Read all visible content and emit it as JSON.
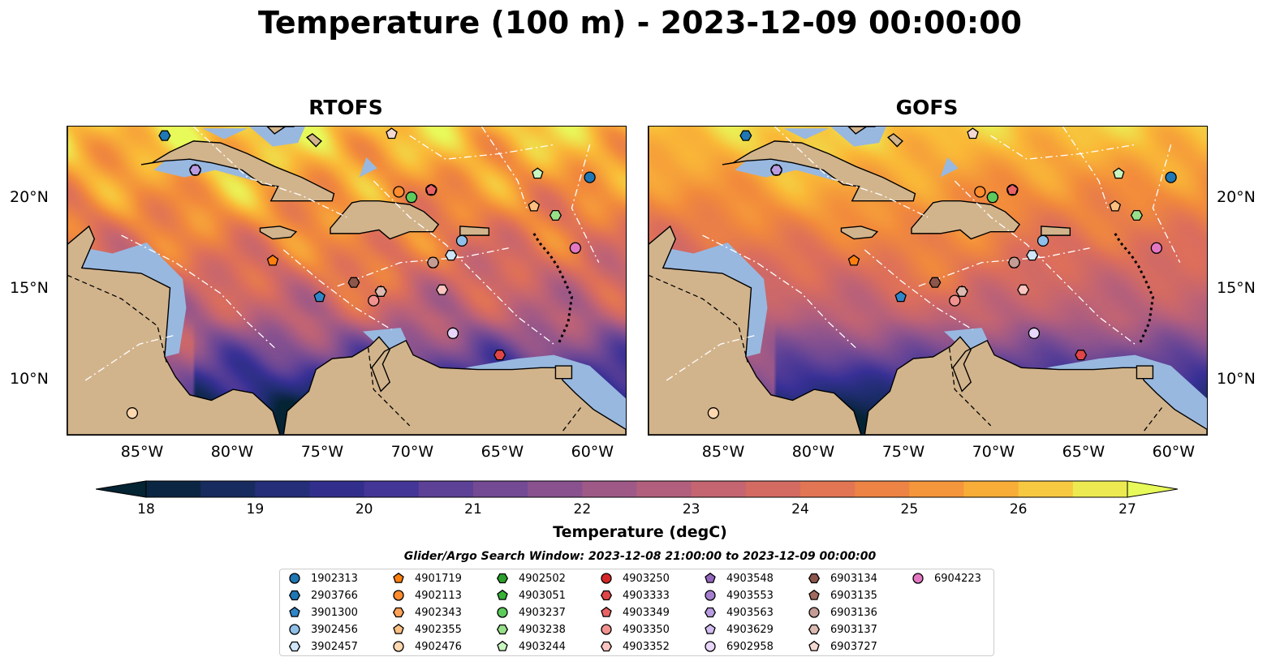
{
  "title": "Temperature (100 m) - 2023-12-09 00:00:00",
  "panels": [
    {
      "title": "RTOFS"
    },
    {
      "title": "GOFS"
    }
  ],
  "axes": {
    "lon_ticks": [
      "85°W",
      "80°W",
      "75°W",
      "70°W",
      "65°W",
      "60°W"
    ],
    "lat_ticks": [
      "20°N",
      "15°N",
      "10°N"
    ]
  },
  "colorbar": {
    "label": "Temperature (degC)",
    "ticks": [
      "18",
      "19",
      "20",
      "21",
      "22",
      "23",
      "24",
      "25",
      "26",
      "27"
    ],
    "min": 18,
    "max": 27,
    "step": 0.5,
    "extend": "both",
    "colormap": "thermal"
  },
  "search_window": "Glider/Argo Search Window: 2023-12-08 21:00:00 to 2023-12-09 00:00:00",
  "legend": [
    {
      "id": "1902313",
      "marker": "circle",
      "color": "#1f77b4"
    },
    {
      "id": "2903766",
      "marker": "hexagon",
      "color": "#1f77b4"
    },
    {
      "id": "3901300",
      "marker": "pentagon",
      "color": "#2f86c8"
    },
    {
      "id": "3902456",
      "marker": "circle",
      "color": "#8fc0ea"
    },
    {
      "id": "3902457",
      "marker": "hexagon",
      "color": "#cfe6f8"
    },
    {
      "id": "4901719",
      "marker": "pentagon",
      "color": "#ff7f0e"
    },
    {
      "id": "4902113",
      "marker": "circle",
      "color": "#ff8c2e"
    },
    {
      "id": "4902343",
      "marker": "hexagon",
      "color": "#ffa25a"
    },
    {
      "id": "4902355",
      "marker": "pentagon",
      "color": "#ffbf80"
    },
    {
      "id": "4902476",
      "marker": "circle",
      "color": "#ffd8b0"
    },
    {
      "id": "4902502",
      "marker": "hexagon",
      "color": "#2ca02c"
    },
    {
      "id": "4903051",
      "marker": "pentagon",
      "color": "#37b237"
    },
    {
      "id": "4903237",
      "marker": "circle",
      "color": "#5ccb5c"
    },
    {
      "id": "4903238",
      "marker": "hexagon",
      "color": "#98df8a"
    },
    {
      "id": "4903244",
      "marker": "pentagon",
      "color": "#c8f5c0"
    },
    {
      "id": "4903250",
      "marker": "circle",
      "color": "#d62728"
    },
    {
      "id": "4903333",
      "marker": "hexagon",
      "color": "#e04647"
    },
    {
      "id": "4903349",
      "marker": "pentagon",
      "color": "#ea6263"
    },
    {
      "id": "4903350",
      "marker": "circle",
      "color": "#f2928f"
    },
    {
      "id": "4903352",
      "marker": "hexagon",
      "color": "#fbc4c0"
    },
    {
      "id": "4903548",
      "marker": "pentagon",
      "color": "#9467bd"
    },
    {
      "id": "4903553",
      "marker": "circle",
      "color": "#a57fcf"
    },
    {
      "id": "4903563",
      "marker": "hexagon",
      "color": "#b99be0"
    },
    {
      "id": "4903629",
      "marker": "pentagon",
      "color": "#d2bcf0"
    },
    {
      "id": "6902958",
      "marker": "circle",
      "color": "#e8d6fa"
    },
    {
      "id": "6903134",
      "marker": "hexagon",
      "color": "#8c564b"
    },
    {
      "id": "6903135",
      "marker": "pentagon",
      "color": "#a06a5e"
    },
    {
      "id": "6903136",
      "marker": "circle",
      "color": "#c49c94"
    },
    {
      "id": "6903137",
      "marker": "hexagon",
      "color": "#dcb9b1"
    },
    {
      "id": "6903727",
      "marker": "pentagon",
      "color": "#f3d9d2"
    },
    {
      "id": "6904223",
      "marker": "circle",
      "color": "#e377c2"
    }
  ],
  "floats": [
    {
      "id": "1902313",
      "lon": -60.0,
      "lat": 21.2
    },
    {
      "id": "2903766",
      "lon": -83.6,
      "lat": 23.5
    },
    {
      "id": "3901300",
      "lon": -75.0,
      "lat": 14.6
    },
    {
      "id": "3902456",
      "lon": -67.1,
      "lat": 17.7
    },
    {
      "id": "3902457",
      "lon": -67.7,
      "lat": 16.9
    },
    {
      "id": "4901719",
      "lon": -77.6,
      "lat": 16.6
    },
    {
      "id": "4902113",
      "lon": -70.6,
      "lat": 20.4
    },
    {
      "id": "4902343",
      "lon": -68.7,
      "lat": 16.5
    },
    {
      "id": "4902355",
      "lon": -63.1,
      "lat": 19.6
    },
    {
      "id": "4902476",
      "lon": -85.4,
      "lat": 8.2
    },
    {
      "id": "4902502",
      "lon": -69.9,
      "lat": 20.1
    },
    {
      "id": "4903051",
      "lon": -69.9,
      "lat": 20.1
    },
    {
      "id": "4903237",
      "lon": -69.9,
      "lat": 20.1
    },
    {
      "id": "4903238",
      "lon": -61.9,
      "lat": 19.1
    },
    {
      "id": "4903244",
      "lon": -62.9,
      "lat": 21.4
    },
    {
      "id": "4903250",
      "lon": -68.8,
      "lat": 20.5
    },
    {
      "id": "4903333",
      "lon": -65.0,
      "lat": 11.4
    },
    {
      "id": "4903349",
      "lon": -68.8,
      "lat": 20.5
    },
    {
      "id": "4903350",
      "lon": -72.0,
      "lat": 14.4
    },
    {
      "id": "4903352",
      "lon": -68.2,
      "lat": 15.0
    },
    {
      "id": "4903548",
      "lon": -81.9,
      "lat": 21.6
    },
    {
      "id": "4903553",
      "lon": -81.9,
      "lat": 21.6
    },
    {
      "id": "4903563",
      "lon": -81.9,
      "lat": 21.6
    },
    {
      "id": "4903629",
      "lon": -67.6,
      "lat": 12.6
    },
    {
      "id": "6902958",
      "lon": -67.6,
      "lat": 12.6
    },
    {
      "id": "6903134",
      "lon": -73.1,
      "lat": 15.4
    },
    {
      "id": "6903135",
      "lon": -71.6,
      "lat": 14.9
    },
    {
      "id": "6903136",
      "lon": -68.7,
      "lat": 16.5
    },
    {
      "id": "6903137",
      "lon": -71.6,
      "lat": 14.9
    },
    {
      "id": "6903727",
      "lon": -71.0,
      "lat": 23.6
    },
    {
      "id": "6904223",
      "lon": -60.8,
      "lat": 17.3
    }
  ],
  "map_extent": {
    "lon_min": -89,
    "lon_max": -58,
    "lat_min": 7,
    "lat_max": 24
  }
}
